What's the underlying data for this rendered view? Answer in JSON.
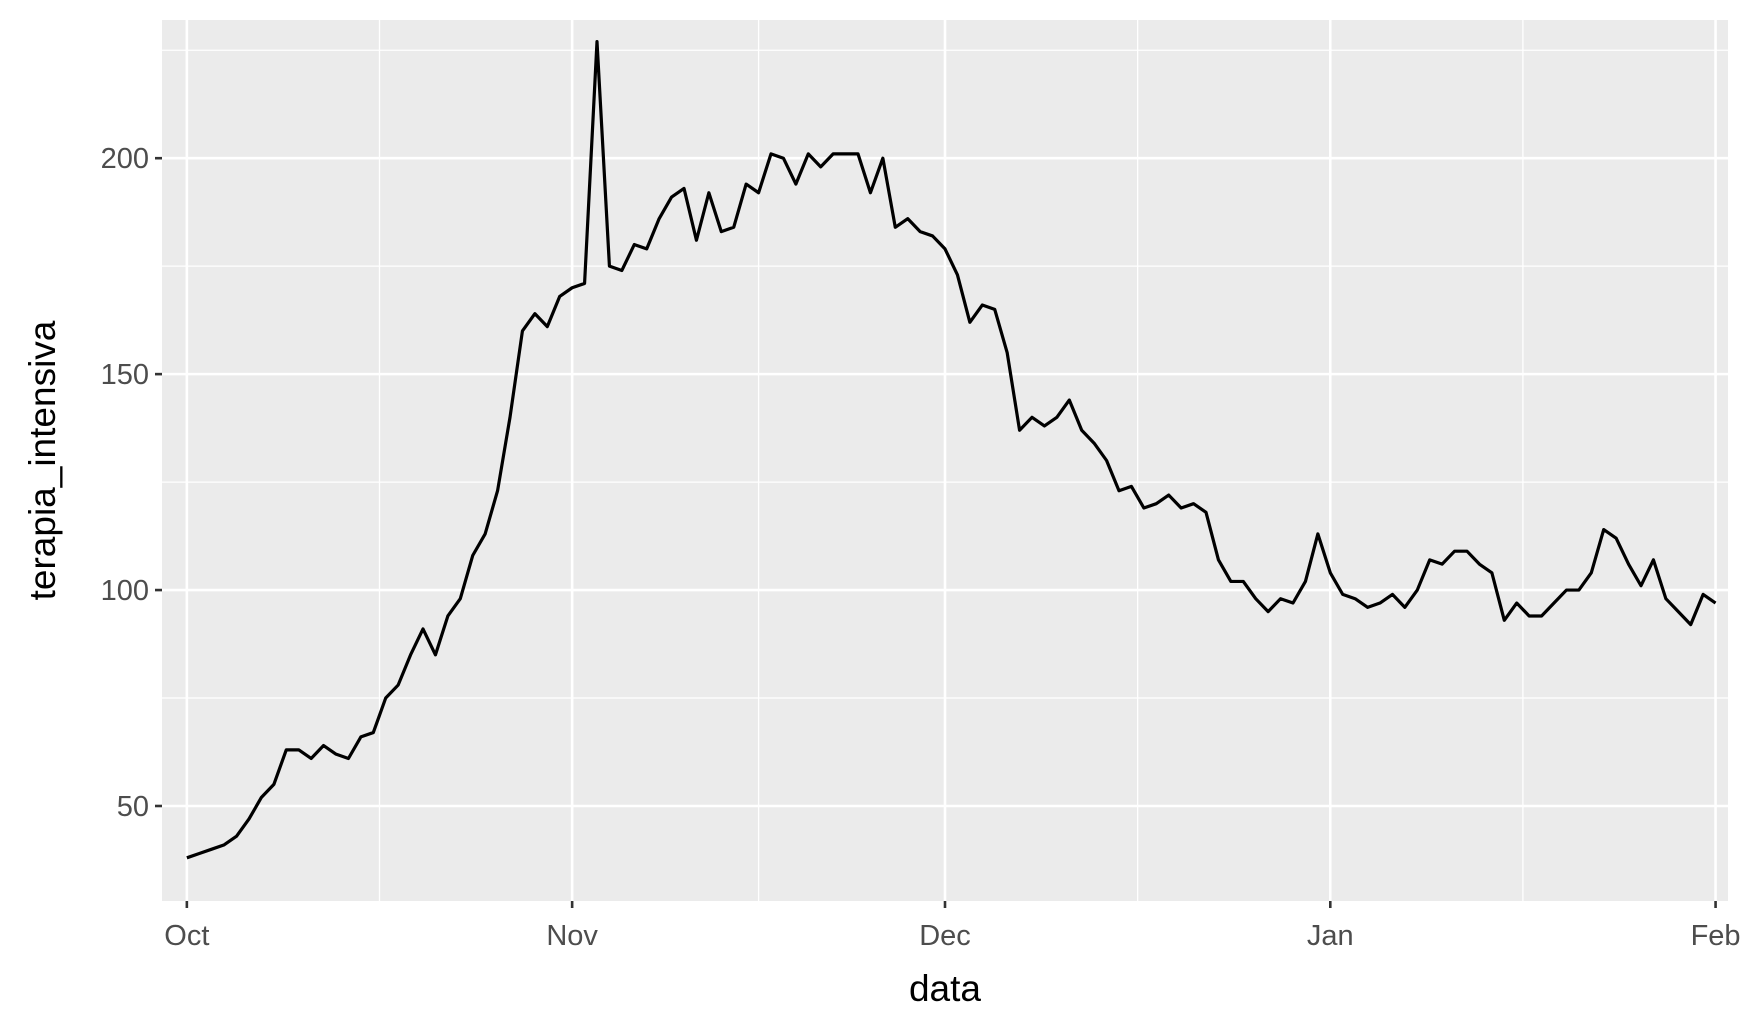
{
  "chart_data": {
    "type": "line",
    "title": "",
    "xlabel": "data",
    "ylabel": "terapia_intensiva",
    "x_ticks": [
      "Oct",
      "Nov",
      "Dec",
      "Jan",
      "Feb"
    ],
    "y_ticks": [
      50,
      100,
      150,
      200
    ],
    "ylim": [
      28,
      232
    ],
    "xlim": [
      "2020-09-29",
      "2021-02-02"
    ],
    "grid": true,
    "legend": "none",
    "colors": {
      "panel": "#ebebeb",
      "grid": "#ffffff",
      "line": "#000000"
    },
    "series": [
      {
        "x": [
          "2020-10-01",
          "2020-10-02",
          "2020-10-03",
          "2020-10-04",
          "2020-10-05",
          "2020-10-06",
          "2020-10-07",
          "2020-10-08",
          "2020-10-09",
          "2020-10-10",
          "2020-10-11",
          "2020-10-12",
          "2020-10-13",
          "2020-10-14",
          "2020-10-15",
          "2020-10-16",
          "2020-10-17",
          "2020-10-18",
          "2020-10-19",
          "2020-10-20",
          "2020-10-21",
          "2020-10-22",
          "2020-10-23",
          "2020-10-24",
          "2020-10-25",
          "2020-10-26",
          "2020-10-27",
          "2020-10-28",
          "2020-10-29",
          "2020-10-30",
          "2020-10-31",
          "2020-11-01",
          "2020-11-02",
          "2020-11-03",
          "2020-11-04",
          "2020-11-05",
          "2020-11-06",
          "2020-11-07",
          "2020-11-08",
          "2020-11-09",
          "2020-11-10",
          "2020-11-11",
          "2020-11-12",
          "2020-11-13",
          "2020-11-14",
          "2020-11-15",
          "2020-11-16",
          "2020-11-17",
          "2020-11-18",
          "2020-11-19",
          "2020-11-20",
          "2020-11-21",
          "2020-11-22",
          "2020-11-23",
          "2020-11-24",
          "2020-11-25",
          "2020-11-26",
          "2020-11-27",
          "2020-11-28",
          "2020-11-29",
          "2020-11-30",
          "2020-12-01",
          "2020-12-02",
          "2020-12-03",
          "2020-12-04",
          "2020-12-05",
          "2020-12-06",
          "2020-12-07",
          "2020-12-08",
          "2020-12-09",
          "2020-12-10",
          "2020-12-11",
          "2020-12-12",
          "2020-12-13",
          "2020-12-14",
          "2020-12-15",
          "2020-12-16",
          "2020-12-17",
          "2020-12-18",
          "2020-12-19",
          "2020-12-20",
          "2020-12-21",
          "2020-12-22",
          "2020-12-23",
          "2020-12-24",
          "2020-12-25",
          "2020-12-26",
          "2020-12-27",
          "2020-12-28",
          "2020-12-29",
          "2020-12-30",
          "2020-12-31",
          "2021-01-01",
          "2021-01-02",
          "2021-01-03",
          "2021-01-04",
          "2021-01-05",
          "2021-01-06",
          "2021-01-07",
          "2021-01-08",
          "2021-01-09",
          "2021-01-10",
          "2021-01-11",
          "2021-01-12",
          "2021-01-13",
          "2021-01-14",
          "2021-01-15",
          "2021-01-16",
          "2021-01-17",
          "2021-01-18",
          "2021-01-19",
          "2021-01-20",
          "2021-01-21",
          "2021-01-22",
          "2021-01-23",
          "2021-01-24",
          "2021-01-25",
          "2021-01-26",
          "2021-01-27",
          "2021-01-28",
          "2021-01-29",
          "2021-01-30",
          "2021-01-31",
          "2021-02-01"
        ],
        "y": [
          38,
          39,
          40,
          41,
          43,
          47,
          52,
          55,
          63,
          63,
          61,
          64,
          62,
          61,
          66,
          67,
          75,
          78,
          85,
          91,
          85,
          94,
          98,
          108,
          113,
          123,
          140,
          160,
          164,
          161,
          168,
          170,
          171,
          227,
          175,
          174,
          180,
          179,
          186,
          191,
          193,
          181,
          192,
          183,
          184,
          194,
          192,
          201,
          200,
          194,
          201,
          198,
          201,
          201,
          201,
          192,
          200,
          184,
          186,
          183,
          182,
          179,
          173,
          162,
          166,
          165,
          155,
          137,
          140,
          138,
          140,
          144,
          137,
          134,
          130,
          123,
          124,
          119,
          120,
          122,
          119,
          120,
          118,
          107,
          102,
          102,
          98,
          95,
          98,
          97,
          102,
          113,
          104,
          99,
          98,
          96,
          97,
          99,
          96,
          100,
          107,
          106,
          109,
          109,
          106,
          104,
          93,
          97,
          94,
          94,
          97,
          100,
          100,
          104,
          114,
          112,
          106,
          101,
          107,
          98,
          95,
          92,
          99,
          97
        ]
      }
    ]
  }
}
